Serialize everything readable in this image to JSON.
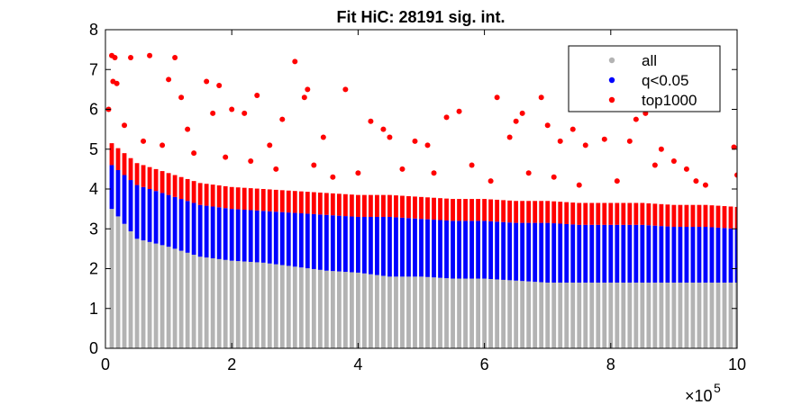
{
  "chart_data": {
    "type": "scatter",
    "title": "Fit HiC: 28191 sig. int.",
    "xlabel": "",
    "ylabel": "",
    "xlim": [
      0,
      1000000
    ],
    "ylim": [
      0,
      8
    ],
    "x_ticks": [
      0,
      200000,
      400000,
      600000,
      800000,
      1000000
    ],
    "x_tick_labels": [
      "0",
      "2",
      "4",
      "6",
      "8",
      "10"
    ],
    "x_multiplier_label": "×10",
    "x_multiplier_exponent": "5",
    "y_ticks": [
      0,
      1,
      2,
      3,
      4,
      5,
      6,
      7,
      8
    ],
    "y_tick_labels": [
      "0",
      "1",
      "2",
      "3",
      "4",
      "5",
      "6",
      "7",
      "8"
    ],
    "grid": false,
    "legend_position": "top-right",
    "series": [
      {
        "name": "all",
        "color": "#b3b3b3"
      },
      {
        "name": "q<0.05",
        "color": "#0000ff"
      },
      {
        "name": "top1000",
        "color": "#ff0000"
      }
    ],
    "bands": {
      "x_step": 10000,
      "columns": [
        {
          "x": 10000,
          "gray_top": 3.5,
          "blue_top": 4.6
        },
        {
          "x": 50000,
          "gray_top": 2.75,
          "blue_top": 4.1
        },
        {
          "x": 100000,
          "gray_top": 2.55,
          "blue_top": 3.85
        },
        {
          "x": 150000,
          "gray_top": 2.3,
          "blue_top": 3.6
        },
        {
          "x": 200000,
          "gray_top": 2.2,
          "blue_top": 3.5
        },
        {
          "x": 250000,
          "gray_top": 2.15,
          "blue_top": 3.45
        },
        {
          "x": 300000,
          "gray_top": 2.05,
          "blue_top": 3.4
        },
        {
          "x": 350000,
          "gray_top": 1.95,
          "blue_top": 3.35
        },
        {
          "x": 400000,
          "gray_top": 1.9,
          "blue_top": 3.3
        },
        {
          "x": 450000,
          "gray_top": 1.8,
          "blue_top": 3.3
        },
        {
          "x": 500000,
          "gray_top": 1.8,
          "blue_top": 3.25
        },
        {
          "x": 550000,
          "gray_top": 1.75,
          "blue_top": 3.2
        },
        {
          "x": 600000,
          "gray_top": 1.75,
          "blue_top": 3.2
        },
        {
          "x": 650000,
          "gray_top": 1.7,
          "blue_top": 3.15
        },
        {
          "x": 700000,
          "gray_top": 1.65,
          "blue_top": 3.15
        },
        {
          "x": 750000,
          "gray_top": 1.65,
          "blue_top": 3.1
        },
        {
          "x": 800000,
          "gray_top": 1.65,
          "blue_top": 3.1
        },
        {
          "x": 850000,
          "gray_top": 1.65,
          "blue_top": 3.1
        },
        {
          "x": 900000,
          "gray_top": 1.65,
          "blue_top": 3.05
        },
        {
          "x": 950000,
          "gray_top": 1.65,
          "blue_top": 3.05
        },
        {
          "x": 1000000,
          "gray_top": 1.65,
          "blue_top": 3.0
        }
      ]
    },
    "top_points": [
      [
        5000,
        6.0
      ],
      [
        10000,
        7.35
      ],
      [
        15000,
        7.3
      ],
      [
        12000,
        6.7
      ],
      [
        18000,
        6.65
      ],
      [
        40000,
        7.3
      ],
      [
        70000,
        7.35
      ],
      [
        100000,
        6.75
      ],
      [
        110000,
        7.3
      ],
      [
        120000,
        6.3
      ],
      [
        130000,
        5.5
      ],
      [
        160000,
        6.7
      ],
      [
        180000,
        6.6
      ],
      [
        170000,
        5.9
      ],
      [
        200000,
        6.0
      ],
      [
        220000,
        5.9
      ],
      [
        240000,
        6.35
      ],
      [
        260000,
        5.1
      ],
      [
        280000,
        5.75
      ],
      [
        300000,
        7.2
      ],
      [
        315000,
        6.3
      ],
      [
        320000,
        6.5
      ],
      [
        345000,
        5.3
      ],
      [
        380000,
        6.5
      ],
      [
        420000,
        5.7
      ],
      [
        440000,
        5.5
      ],
      [
        450000,
        5.3
      ],
      [
        490000,
        5.2
      ],
      [
        510000,
        5.1
      ],
      [
        540000,
        5.8
      ],
      [
        560000,
        5.95
      ],
      [
        620000,
        6.3
      ],
      [
        640000,
        5.3
      ],
      [
        650000,
        5.7
      ],
      [
        660000,
        5.9
      ],
      [
        690000,
        6.3
      ],
      [
        700000,
        5.6
      ],
      [
        720000,
        5.2
      ],
      [
        740000,
        5.5
      ],
      [
        760000,
        5.1
      ],
      [
        790000,
        5.25
      ],
      [
        830000,
        5.2
      ],
      [
        840000,
        5.75
      ],
      [
        855000,
        5.9
      ],
      [
        870000,
        4.6
      ],
      [
        880000,
        5.0
      ],
      [
        900000,
        4.7
      ],
      [
        920000,
        4.5
      ],
      [
        935000,
        4.2
      ],
      [
        995000,
        5.05
      ],
      [
        1000000,
        4.35
      ],
      [
        30000,
        5.6
      ],
      [
        60000,
        5.2
      ],
      [
        90000,
        5.1
      ],
      [
        140000,
        4.9
      ],
      [
        190000,
        4.8
      ],
      [
        230000,
        4.7
      ],
      [
        270000,
        4.5
      ],
      [
        330000,
        4.6
      ],
      [
        360000,
        4.3
      ],
      [
        400000,
        4.4
      ],
      [
        470000,
        4.5
      ],
      [
        520000,
        4.4
      ],
      [
        580000,
        4.6
      ],
      [
        610000,
        4.2
      ],
      [
        670000,
        4.4
      ],
      [
        710000,
        4.3
      ],
      [
        750000,
        4.1
      ],
      [
        810000,
        4.2
      ],
      [
        950000,
        4.1
      ]
    ]
  },
  "legend": {
    "items": [
      "all",
      "q<0.05",
      "top1000"
    ]
  }
}
